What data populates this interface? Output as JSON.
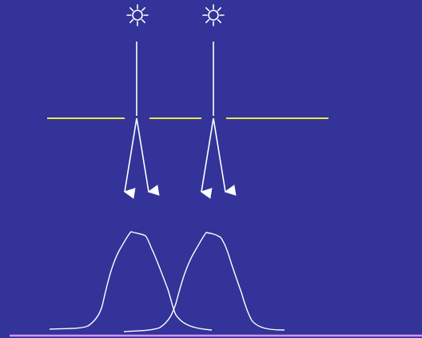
{
  "colors": {
    "background": "#333399",
    "rays": "#ffffff",
    "slit_screen": "#e6e64d",
    "baseline": "#cc99ff",
    "source_icon": "#ffffff"
  },
  "diagram": {
    "sources": [
      {
        "icon": "sun-icon"
      },
      {
        "icon": "sun-icon"
      }
    ],
    "slit_barrier": {
      "segments": 3,
      "gaps": 2
    },
    "diffracted_ray_pairs": 2,
    "intensity_peaks": 2
  }
}
